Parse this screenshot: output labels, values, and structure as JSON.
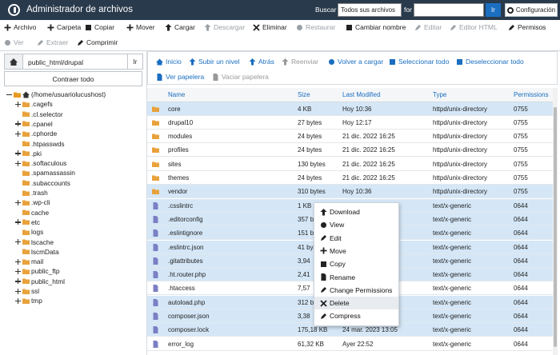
{
  "header": {
    "title": "Administrador de archivos",
    "search_label": "Buscar",
    "search_scope": "Todos sus archivos",
    "for_label": "for",
    "go_button": "Ir",
    "settings_button": "Configuración"
  },
  "toolbar": {
    "row1": [
      {
        "label": "Archivo"
      },
      {
        "label": "Carpeta"
      },
      {
        "label": "Copiar"
      },
      {
        "label": "Mover"
      },
      {
        "label": "Cargar"
      },
      {
        "label": "Descargar",
        "disabled": true
      },
      {
        "label": "Eliminar"
      },
      {
        "label": "Restaurar",
        "disabled": true
      },
      {
        "label": "Cambiar nombre"
      },
      {
        "label": "Editar",
        "disabled": true
      },
      {
        "label": "Editor HTML",
        "disabled": true
      },
      {
        "label": "Permisos"
      }
    ],
    "row2": [
      {
        "label": "Ver",
        "disabled": true
      },
      {
        "label": "Extraer",
        "disabled": true
      },
      {
        "label": "Comprimir"
      }
    ]
  },
  "sidebar": {
    "path": "public_html/drupal",
    "go_button": "Ir",
    "collapse_button": "Contraer todo",
    "tree": [
      {
        "label": "(/home/usuariolucushost)",
        "level": 0,
        "expandable": true
      },
      {
        "label": ".cagefs",
        "level": 1,
        "expandable": true
      },
      {
        "label": ".cl.selector",
        "level": 1,
        "expandable": false
      },
      {
        "label": ".cpanel",
        "level": 1,
        "expandable": true
      },
      {
        "label": ".cphorde",
        "level": 1,
        "expandable": true
      },
      {
        "label": ".htpasswds",
        "level": 1,
        "expandable": false
      },
      {
        "label": ".pki",
        "level": 1,
        "expandable": true
      },
      {
        "label": ".softaculous",
        "level": 1,
        "expandable": true
      },
      {
        "label": ".spamassassin",
        "level": 1,
        "expandable": false
      },
      {
        "label": ".subaccounts",
        "level": 1,
        "expandable": false
      },
      {
        "label": ".trash",
        "level": 1,
        "expandable": false
      },
      {
        "label": ".wp-cli",
        "level": 1,
        "expandable": true
      },
      {
        "label": "cache",
        "level": 1,
        "expandable": false
      },
      {
        "label": "etc",
        "level": 1,
        "expandable": true
      },
      {
        "label": "logs",
        "level": 1,
        "expandable": false
      },
      {
        "label": "lscache",
        "level": 1,
        "expandable": true
      },
      {
        "label": "lscmData",
        "level": 1,
        "expandable": false
      },
      {
        "label": "mail",
        "level": 1,
        "expandable": true
      },
      {
        "label": "public_ftp",
        "level": 1,
        "expandable": true
      },
      {
        "label": "public_html",
        "level": 1,
        "expandable": true
      },
      {
        "label": "ssl",
        "level": 1,
        "expandable": true
      },
      {
        "label": "tmp",
        "level": 1,
        "expandable": true
      }
    ]
  },
  "navigation": {
    "row1": [
      {
        "label": "Inicio"
      },
      {
        "label": "Subir un nivel"
      },
      {
        "label": "Atrás"
      },
      {
        "label": "Reenviar",
        "disabled": true
      },
      {
        "label": "Volver a cargar"
      },
      {
        "label": "Seleccionar todo"
      },
      {
        "label": "Deseleccionar todo"
      }
    ],
    "row2": [
      {
        "label": "Ver papelera"
      },
      {
        "label": "Vaciar papelera",
        "disabled": true
      }
    ]
  },
  "table": {
    "columns": [
      "Name",
      "Size",
      "Last Modified",
      "Type",
      "Permissions"
    ],
    "rows": [
      {
        "name": "core",
        "size": "4 KB",
        "modified": "Hoy 10:36",
        "type": "httpd/unix-directory",
        "permissions": "0755",
        "selected": true
      },
      {
        "name": "drupal10",
        "size": "27 bytes",
        "modified": "Hoy 12:17",
        "type": "httpd/unix-directory",
        "permissions": "0755",
        "selected": false
      },
      {
        "name": "modules",
        "size": "24 bytes",
        "modified": "21 dic. 2022 16:25",
        "type": "httpd/unix-directory",
        "permissions": "0755",
        "selected": false
      },
      {
        "name": "profiles",
        "size": "24 bytes",
        "modified": "21 dic. 2022 16:25",
        "type": "httpd/unix-directory",
        "permissions": "0755",
        "selected": false
      },
      {
        "name": "sites",
        "size": "130 bytes",
        "modified": "21 dic. 2022 16:25",
        "type": "httpd/unix-directory",
        "permissions": "0755",
        "selected": false
      },
      {
        "name": "themes",
        "size": "24 bytes",
        "modified": "21 dic. 2022 16:25",
        "type": "httpd/unix-directory",
        "permissions": "0755",
        "selected": false
      },
      {
        "name": "vendor",
        "size": "310 bytes",
        "modified": "Hoy 10:36",
        "type": "httpd/unix-directory",
        "permissions": "0755",
        "selected": true
      },
      {
        "name": ".csslintrc",
        "size": "1 KB",
        "modified": null,
        "type": "text/x-generic",
        "permissions": "0644",
        "selected": true
      },
      {
        "name": ".editorconfig",
        "size": "357 b",
        "modified": null,
        "type": "text/x-generic",
        "permissions": "0644",
        "selected": true
      },
      {
        "name": ".eslintignore",
        "size": "151 b",
        "modified": null,
        "type": "text/x-generic",
        "permissions": "0644",
        "selected": true
      },
      {
        "name": ".eslintrc.json",
        "size": "41 by",
        "modified": null,
        "type": "text/x-generic",
        "permissions": "0644",
        "selected": true
      },
      {
        "name": ".gitattributes",
        "size": "3,94",
        "modified": null,
        "type": "text/x-generic",
        "permissions": "0644",
        "selected": true
      },
      {
        "name": ".ht.router.php",
        "size": "2,41",
        "modified": null,
        "type": "text/x-generic",
        "permissions": "0644",
        "selected": true
      },
      {
        "name": ".htaccess",
        "size": "7,57",
        "modified": null,
        "type": "text/x-generic",
        "permissions": "0644",
        "selected": false
      },
      {
        "name": "autoload.php",
        "size": "312 b",
        "modified": null,
        "type": "text/x-generic",
        "permissions": "0644",
        "selected": true
      },
      {
        "name": "composer.json",
        "size": "3,38",
        "modified": null,
        "type": "text/x-generic",
        "permissions": "0644",
        "selected": true
      },
      {
        "name": "composer.lock",
        "size": "175,18 KB",
        "modified": "24 mar. 2023 13:05",
        "type": "text/x-generic",
        "permissions": "0644",
        "selected": true
      },
      {
        "name": "error_log",
        "size": "61,32 KB",
        "modified": "Ayer 22:52",
        "type": "text/x-generic",
        "permissions": "0644",
        "selected": false
      }
    ]
  },
  "context_menu": {
    "items": [
      {
        "label": "Download"
      },
      {
        "label": "View"
      },
      {
        "label": "Edit"
      },
      {
        "label": "Move"
      },
      {
        "label": "Copy"
      },
      {
        "label": "Rename"
      },
      {
        "label": "Change Permissions"
      },
      {
        "label": "Delete",
        "highlighted": true
      },
      {
        "label": "Compress"
      }
    ]
  }
}
